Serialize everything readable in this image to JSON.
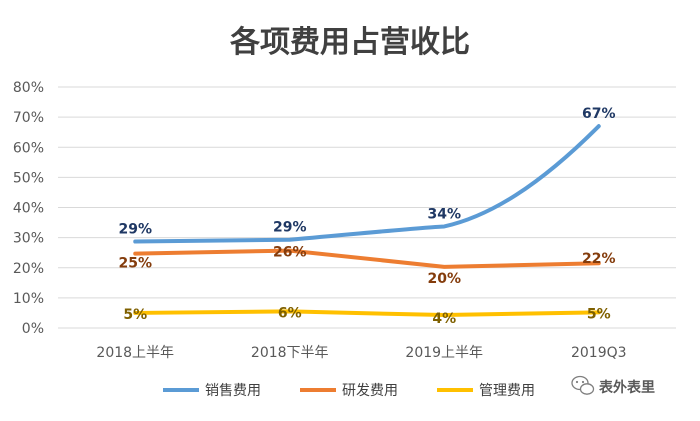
{
  "chart_data": {
    "type": "line",
    "title": "各项费用占营收比",
    "categories": [
      "2018上半年",
      "2018下半年",
      "2019上半年",
      "2019Q3"
    ],
    "yticks": [
      "0%",
      "10%",
      "20%",
      "30%",
      "40%",
      "50%",
      "60%",
      "70%",
      "80%"
    ],
    "ylim": [
      0,
      80
    ],
    "grid": true,
    "legend_position": "bottom",
    "series": [
      {
        "name": "销售费用",
        "color": "#5B9BD5",
        "values": [
          28.7,
          29.3,
          33.7,
          67
        ],
        "labels": [
          "29%",
          "29%",
          "34%",
          "67%"
        ]
      },
      {
        "name": "研发费用",
        "color": "#ED7D31",
        "values": [
          24.7,
          25.7,
          20.3,
          21.5
        ],
        "labels": [
          "25%",
          "26%",
          "20%",
          "22%"
        ]
      },
      {
        "name": "管理费用",
        "color": "#FFC000",
        "values": [
          5,
          5.5,
          4.3,
          5.2
        ],
        "labels": [
          "5%",
          "6%",
          "4%",
          "5%"
        ]
      }
    ]
  },
  "watermark": {
    "text": "表外表里",
    "icon": "wechat-logo-icon"
  },
  "colors": {
    "label_blue": "#1F3864",
    "label_brown": "#843C0C",
    "label_olive": "#7F6000"
  }
}
